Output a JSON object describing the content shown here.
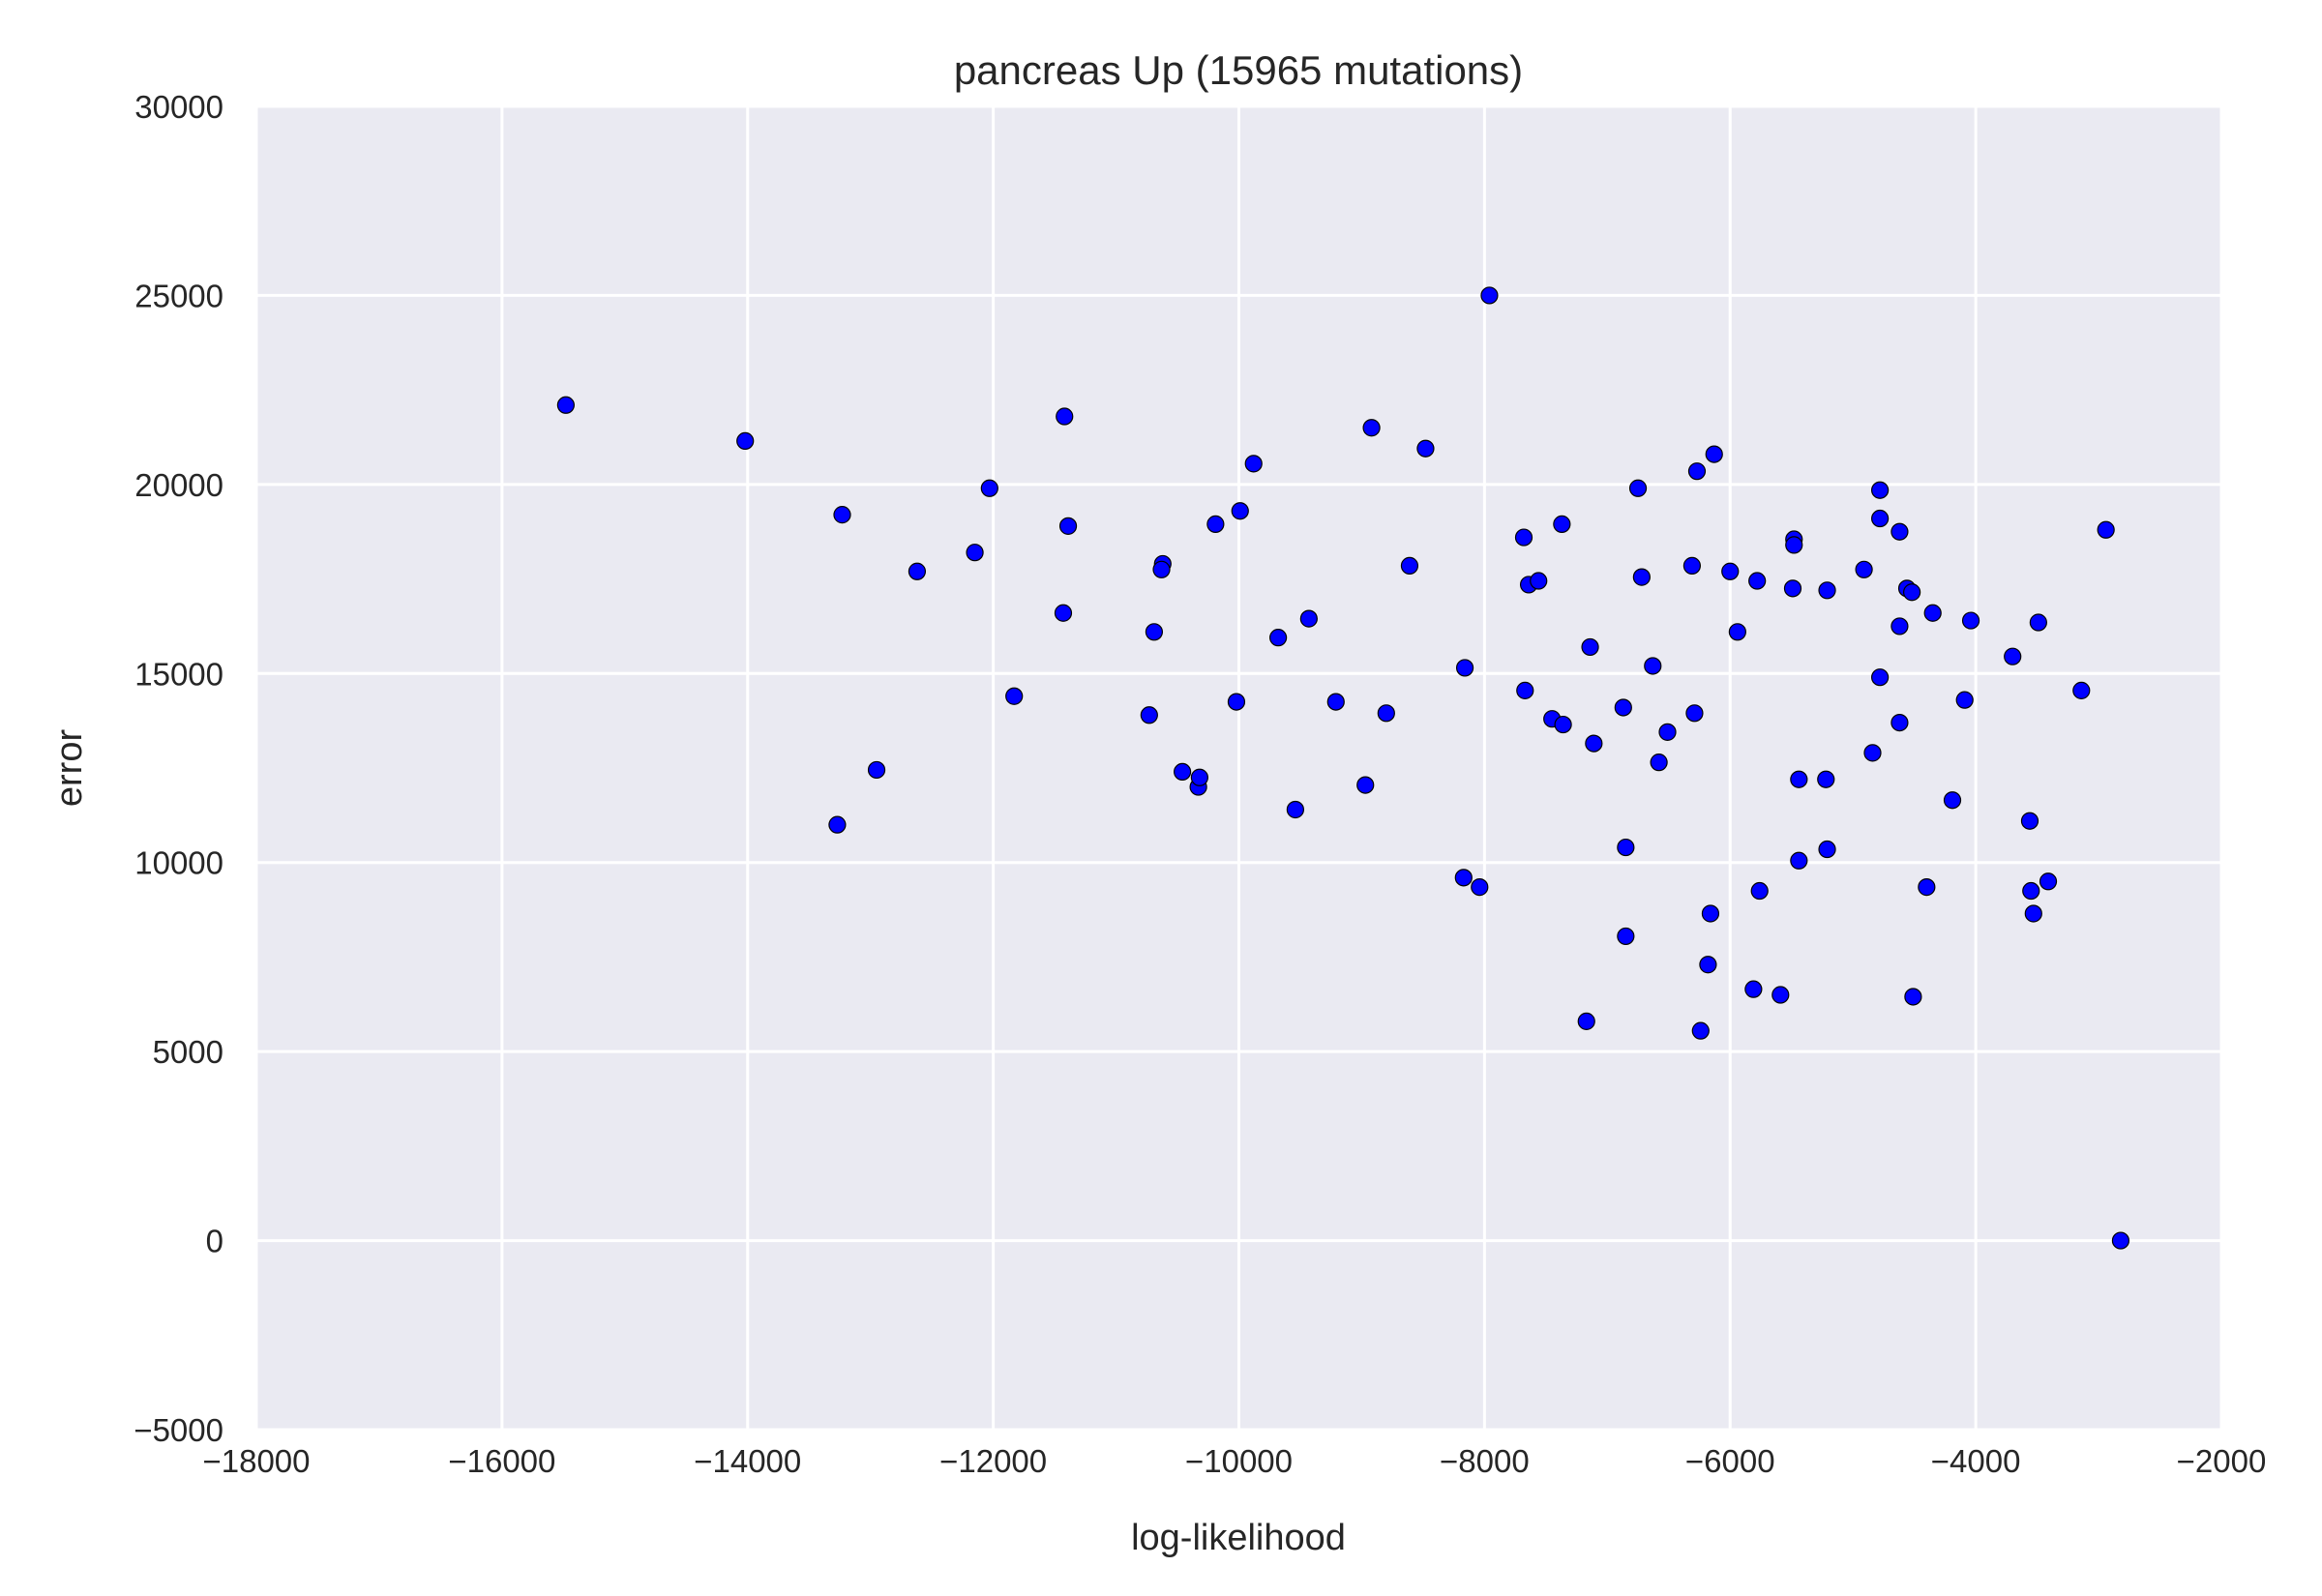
{
  "chart_data": {
    "type": "scatter",
    "title": "pancreas Up (15965 mutations)",
    "xlabel": "log-likelihood",
    "ylabel": "error",
    "xlim": [
      -18000,
      -2000
    ],
    "ylim": [
      -5000,
      30000
    ],
    "xticks": [
      -18000,
      -16000,
      -14000,
      -12000,
      -10000,
      -8000,
      -6000,
      -4000,
      -2000
    ],
    "yticks": [
      -5000,
      0,
      5000,
      10000,
      15000,
      20000,
      25000,
      30000
    ],
    "xtick_labels": [
      "−18000",
      "−16000",
      "−14000",
      "−12000",
      "−10000",
      "−8000",
      "−6000",
      "−4000",
      "−2000"
    ],
    "ytick_labels": [
      "−5000",
      "0",
      "5000",
      "10000",
      "15000",
      "20000",
      "25000",
      "30000"
    ],
    "grid": true,
    "background": "#eaeaf2",
    "marker_color": "#0000ff",
    "points": [
      [
        -15480,
        22100
      ],
      [
        -14020,
        21150
      ],
      [
        -13230,
        19200
      ],
      [
        -13270,
        11000
      ],
      [
        -12950,
        12450
      ],
      [
        -12620,
        17700
      ],
      [
        -12150,
        18200
      ],
      [
        -12030,
        19900
      ],
      [
        -11830,
        14400
      ],
      [
        -11420,
        21800
      ],
      [
        -11390,
        18900
      ],
      [
        -11430,
        16600
      ],
      [
        -10730,
        13900
      ],
      [
        -10690,
        16100
      ],
      [
        -10620,
        17900
      ],
      [
        -10630,
        17750
      ],
      [
        -10460,
        12400
      ],
      [
        -10330,
        12000
      ],
      [
        -10320,
        12250
      ],
      [
        -10190,
        18950
      ],
      [
        -10020,
        14250
      ],
      [
        -9990,
        19300
      ],
      [
        -9880,
        20550
      ],
      [
        -9680,
        15950
      ],
      [
        -9540,
        11400
      ],
      [
        -9430,
        16450
      ],
      [
        -9210,
        14250
      ],
      [
        -8970,
        12050
      ],
      [
        -8920,
        21500
      ],
      [
        -8800,
        13950
      ],
      [
        -8610,
        17850
      ],
      [
        -8480,
        20950
      ],
      [
        -8160,
        15150
      ],
      [
        -8170,
        9600
      ],
      [
        -8040,
        9350
      ],
      [
        -7960,
        25000
      ],
      [
        -7680,
        18600
      ],
      [
        -7670,
        14550
      ],
      [
        -7640,
        17350
      ],
      [
        -7560,
        17450
      ],
      [
        -7450,
        13800
      ],
      [
        -7370,
        18950
      ],
      [
        -7360,
        13650
      ],
      [
        -7170,
        5800
      ],
      [
        -7140,
        15700
      ],
      [
        -7110,
        13150
      ],
      [
        -6870,
        14100
      ],
      [
        -6850,
        10400
      ],
      [
        -6850,
        8050
      ],
      [
        -6750,
        19900
      ],
      [
        -6720,
        17550
      ],
      [
        -6630,
        15200
      ],
      [
        -6580,
        12650
      ],
      [
        -6510,
        13450
      ],
      [
        -6310,
        17850
      ],
      [
        -6290,
        13950
      ],
      [
        -6270,
        20350
      ],
      [
        -6240,
        5550
      ],
      [
        -6180,
        7300
      ],
      [
        -6160,
        8650
      ],
      [
        -6130,
        20800
      ],
      [
        -6000,
        17700
      ],
      [
        -5940,
        16100
      ],
      [
        -5810,
        6650
      ],
      [
        -5780,
        17450
      ],
      [
        -5760,
        9250
      ],
      [
        -5590,
        6500
      ],
      [
        -5490,
        17250
      ],
      [
        -5480,
        18550
      ],
      [
        -5480,
        18400
      ],
      [
        -5440,
        12200
      ],
      [
        -5440,
        10050
      ],
      [
        -5220,
        12200
      ],
      [
        -5210,
        17200
      ],
      [
        -5210,
        10350
      ],
      [
        -4910,
        17750
      ],
      [
        -4840,
        12900
      ],
      [
        -4780,
        19850
      ],
      [
        -4780,
        19100
      ],
      [
        -4780,
        14900
      ],
      [
        -4620,
        18750
      ],
      [
        -4620,
        16250
      ],
      [
        -4620,
        13700
      ],
      [
        -4560,
        17250
      ],
      [
        -4520,
        17150
      ],
      [
        -4510,
        6450
      ],
      [
        -4400,
        9350
      ],
      [
        -4350,
        16600
      ],
      [
        -4190,
        11650
      ],
      [
        -4090,
        14300
      ],
      [
        -4040,
        16400
      ],
      [
        -3700,
        15450
      ],
      [
        -3560,
        11100
      ],
      [
        -3550,
        9250
      ],
      [
        -3530,
        8650
      ],
      [
        -3490,
        16350
      ],
      [
        -3410,
        9500
      ],
      [
        -3140,
        14550
      ],
      [
        -2940,
        18800
      ],
      [
        -2820,
        0
      ]
    ]
  }
}
